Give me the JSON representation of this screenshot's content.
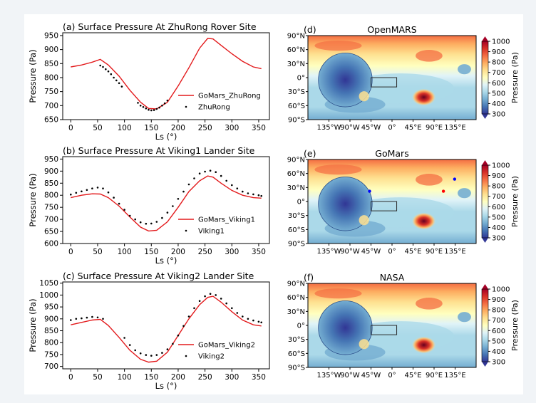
{
  "colors": {
    "page_bg": "#f1f4f7",
    "figure_bg": "#ffffff",
    "model_line": "#e31a1c",
    "obs_point": "#000000",
    "box_outline": "#2b2b2b"
  },
  "line_panels": {
    "xlabel": "Ls (°)",
    "ylabel": "Pressure (Pa)",
    "x_ticks": [
      "0",
      "50",
      "100",
      "150",
      "200",
      "250",
      "300",
      "350"
    ]
  },
  "map_panels": {
    "lat_ticks": [
      "90°N",
      "60°N",
      "30°N",
      "0°",
      "30°S",
      "60°S",
      "90°S"
    ],
    "lon_ticks": [
      "135°W",
      "90°W",
      "45°W",
      "0°",
      "45°E",
      "90°E",
      "135°E"
    ],
    "colorbar_label": "Pressure (Pa)",
    "colorbar_ticks": [
      "1000",
      "900",
      "800",
      "700",
      "600",
      "500",
      "400",
      "300"
    ],
    "colorscale": [
      "#313695",
      "#4575b4",
      "#74add1",
      "#abd9e9",
      "#e0f3f8",
      "#ffffbf",
      "#fee090",
      "#fdae61",
      "#f46d43",
      "#d73027",
      "#a50026"
    ]
  },
  "chart_data": [
    {
      "type": "line",
      "title": "(a)  Surface Pressure At ZhuRong Rover Site",
      "xlabel": "Ls (°)",
      "ylabel": "Pressure (Pa)",
      "xlim": [
        -15,
        370
      ],
      "ylim": [
        650,
        960
      ],
      "yticks": [
        "950",
        "900",
        "850",
        "800",
        "750",
        "700",
        "650"
      ],
      "legend_position": "lower-right",
      "series": [
        {
          "name": "GoMars_ZhuRong",
          "style": "line",
          "x": [
            0,
            20,
            40,
            55,
            70,
            90,
            110,
            130,
            145,
            160,
            180,
            200,
            220,
            240,
            255,
            265,
            280,
            300,
            320,
            340,
            355
          ],
          "y": [
            838,
            845,
            855,
            865,
            845,
            805,
            755,
            712,
            690,
            688,
            712,
            770,
            835,
            905,
            940,
            938,
            915,
            885,
            858,
            838,
            832
          ]
        },
        {
          "name": "ZhuRong",
          "style": "points",
          "x": [
            55,
            60,
            65,
            70,
            75,
            80,
            85,
            90,
            95,
            125,
            130,
            135,
            140,
            145,
            150,
            155,
            160,
            165,
            170,
            175,
            180
          ],
          "y": [
            843,
            838,
            830,
            822,
            812,
            800,
            790,
            780,
            768,
            710,
            700,
            695,
            690,
            685,
            683,
            684,
            688,
            693,
            700,
            708,
            718
          ]
        }
      ]
    },
    {
      "type": "line",
      "title": "(b)  Surface Pressure At Viking1 Lander Site",
      "xlabel": "Ls (°)",
      "ylabel": "Pressure (Pa)",
      "xlim": [
        -15,
        370
      ],
      "ylim": [
        600,
        960
      ],
      "yticks": [
        "950",
        "900",
        "850",
        "800",
        "750",
        "700",
        "650",
        "600"
      ],
      "legend_position": "lower-right",
      "series": [
        {
          "name": "GoMars_Viking1",
          "style": "line",
          "x": [
            0,
            20,
            40,
            55,
            70,
            90,
            110,
            130,
            145,
            160,
            180,
            200,
            220,
            240,
            255,
            265,
            280,
            300,
            320,
            340,
            355
          ],
          "y": [
            790,
            800,
            806,
            805,
            790,
            755,
            710,
            668,
            652,
            655,
            690,
            750,
            815,
            860,
            880,
            875,
            850,
            820,
            800,
            790,
            788
          ]
        },
        {
          "name": "Viking1",
          "style": "points",
          "x": [
            0,
            10,
            20,
            30,
            40,
            50,
            60,
            70,
            80,
            90,
            100,
            110,
            120,
            130,
            140,
            150,
            160,
            170,
            180,
            190,
            200,
            210,
            220,
            230,
            240,
            250,
            260,
            270,
            280,
            290,
            300,
            310,
            320,
            330,
            340,
            350,
            355
          ],
          "y": [
            803,
            810,
            816,
            822,
            828,
            832,
            828,
            812,
            790,
            765,
            740,
            715,
            700,
            688,
            682,
            683,
            690,
            706,
            728,
            755,
            785,
            815,
            845,
            870,
            890,
            898,
            902,
            896,
            880,
            860,
            842,
            828,
            815,
            808,
            804,
            800,
            797
          ]
        }
      ]
    },
    {
      "type": "line",
      "title": "(c)  Surface Pressure At Viking2 Lander Site",
      "xlabel": "Ls (°)",
      "ylabel": "Pressure (Pa)",
      "xlim": [
        -15,
        370
      ],
      "ylim": [
        690,
        1055
      ],
      "yticks": [
        "1050",
        "1000",
        "950",
        "900",
        "850",
        "800",
        "750",
        "700"
      ],
      "legend_position": "lower-right",
      "series": [
        {
          "name": "GoMars_Viking2",
          "style": "line",
          "x": [
            0,
            20,
            40,
            55,
            70,
            90,
            110,
            130,
            145,
            160,
            180,
            200,
            220,
            240,
            255,
            265,
            280,
            300,
            320,
            340,
            355
          ],
          "y": [
            875,
            885,
            895,
            898,
            872,
            822,
            768,
            730,
            718,
            722,
            760,
            830,
            900,
            960,
            990,
            995,
            970,
            930,
            895,
            875,
            870
          ]
        },
        {
          "name": "Viking2",
          "style": "points",
          "x": [
            0,
            10,
            20,
            30,
            40,
            50,
            60,
            100,
            110,
            120,
            130,
            140,
            150,
            160,
            170,
            180,
            190,
            200,
            210,
            220,
            230,
            240,
            250,
            260,
            270,
            280,
            290,
            300,
            310,
            320,
            330,
            340,
            350,
            355
          ],
          "y": [
            895,
            900,
            902,
            905,
            908,
            906,
            900,
            820,
            790,
            768,
            755,
            748,
            745,
            748,
            757,
            772,
            795,
            830,
            870,
            910,
            945,
            975,
            995,
            1005,
            1000,
            985,
            965,
            945,
            925,
            910,
            900,
            893,
            888,
            885
          ]
        }
      ]
    },
    {
      "type": "heatmap",
      "title": "(d)",
      "subtitle": "OpenMARS",
      "colorbar": {
        "label": "Pressure (Pa)",
        "range": [
          300,
          1000
        ]
      },
      "marked_region_box": {
        "lon": [
          -45,
          10
        ],
        "lat": [
          -20,
          0
        ]
      }
    },
    {
      "type": "heatmap",
      "title": "(e)",
      "subtitle": "GoMars",
      "colorbar": {
        "label": "Pressure (Pa)",
        "range": [
          300,
          1000
        ]
      },
      "marked_region_box": {
        "lon": [
          -45,
          10
        ],
        "lat": [
          -20,
          0
        ]
      },
      "site_markers": [
        {
          "color": "#0000ff",
          "lon": -48,
          "lat": 22
        },
        {
          "color": "#ff0000",
          "lon": 110,
          "lat": 22
        },
        {
          "color": "#0000ff",
          "lon": 134,
          "lat": 48
        }
      ]
    },
    {
      "type": "heatmap",
      "title": "(f)",
      "subtitle": "NASA",
      "colorbar": {
        "label": "Pressure (Pa)",
        "range": [
          300,
          1000
        ]
      },
      "marked_region_box": {
        "lon": [
          -45,
          10
        ],
        "lat": [
          -20,
          0
        ]
      }
    }
  ]
}
